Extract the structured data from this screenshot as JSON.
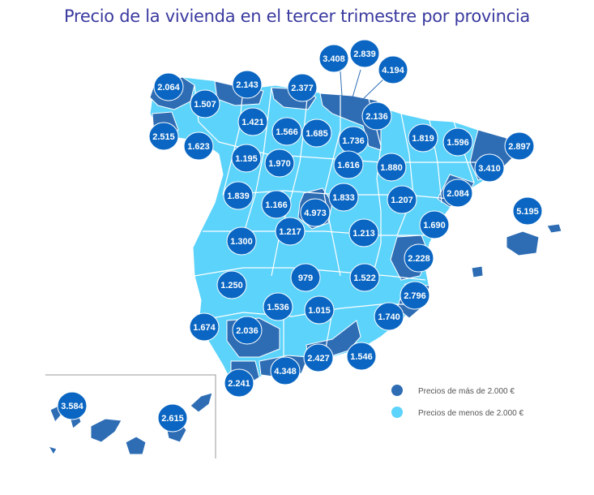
{
  "title": "Precio de la vivienda en el tercer trimestre por provincia",
  "colors": {
    "high": "#2e6db4",
    "low": "#5cd3fb",
    "bubble": "#0a66c2",
    "bubble_stroke": "#ffffff",
    "title": "#3a3aa0",
    "border": "#ffffff"
  },
  "legend": {
    "high_label": "Precios de más de 2.000 €",
    "low_label": "Precios de menos de 2.000 €"
  },
  "price_labels": [
    "2.064",
    "2.143",
    "2.377",
    "3.408",
    "2.839",
    "4.194",
    "1.507",
    "1.421",
    "1.566",
    "1.685",
    "2.136",
    "2.515",
    "1.623",
    "1.736",
    "1.819",
    "1.596",
    "2.897",
    "1.195",
    "1.970",
    "1.616",
    "1.880",
    "3.410",
    "2.084",
    "5.195",
    "1.839",
    "1.166",
    "4.973",
    "1.833",
    "1.207",
    "1.690",
    "1.217",
    "1.213",
    "1.300",
    "2.228",
    "979",
    "1.522",
    "1.250",
    "2.796",
    "1.536",
    "1.015",
    "1.740",
    "1.674",
    "2.036",
    "2.427",
    "1.546",
    "4.348",
    "2.241",
    "3.584",
    "2.615"
  ]
}
